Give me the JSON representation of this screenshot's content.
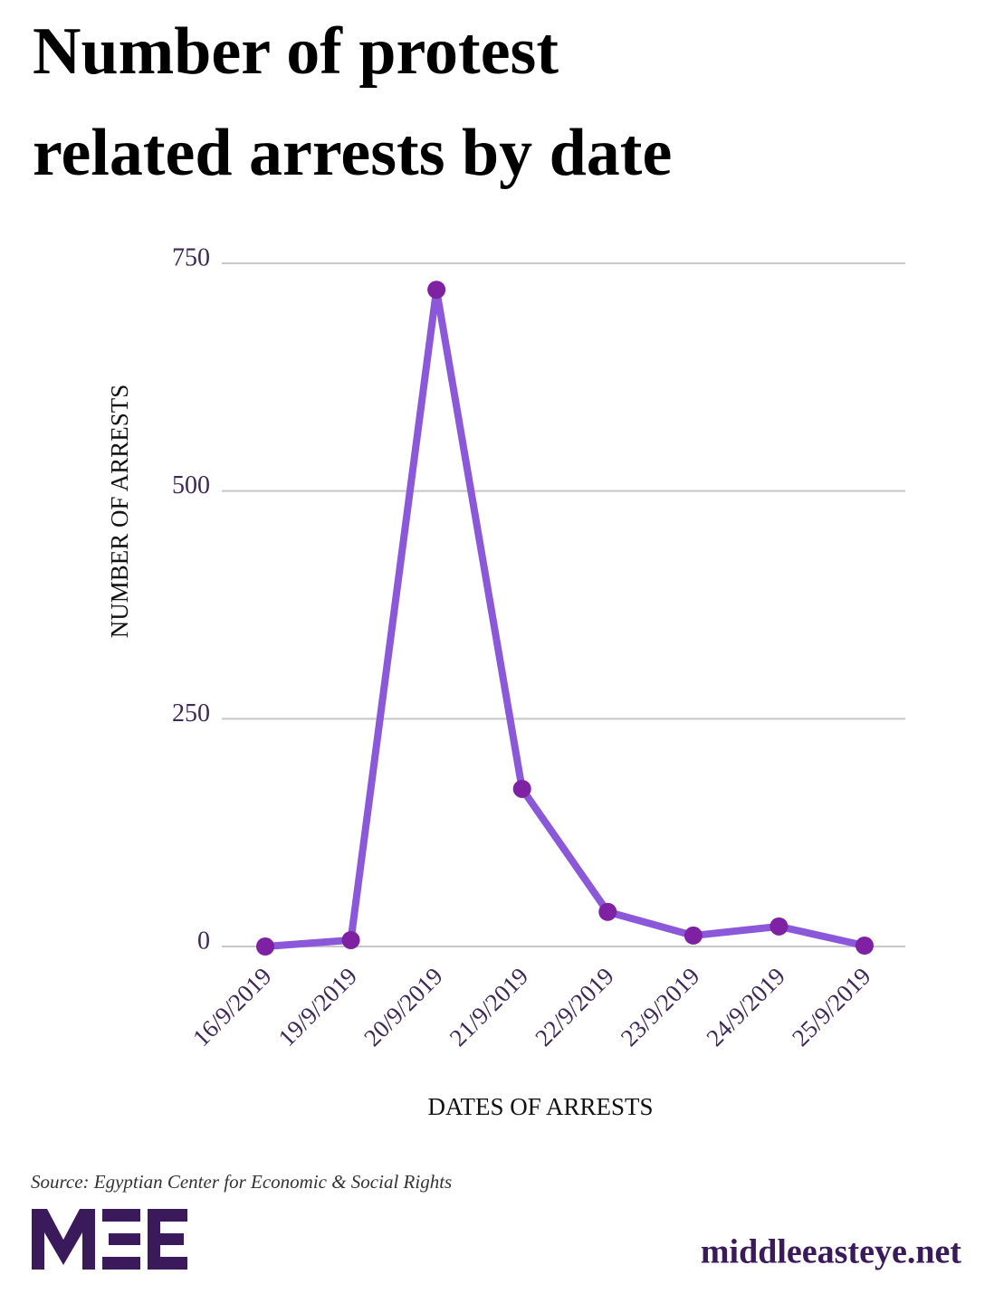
{
  "chart_data": {
    "type": "line",
    "title": [
      "Number of protest",
      "related arrests by date"
    ],
    "x_label": "DATES OF ARRESTS",
    "y_label": "NUMBER OF ARRESTS",
    "categories": [
      "16/9/2019",
      "19/9/2019",
      "20/9/2019",
      "21/9/2019",
      "22/9/2019",
      "23/9/2019",
      "24/9/2019",
      "25/9/2019"
    ],
    "values": [
      0,
      7,
      721,
      173,
      38,
      12,
      22,
      1
    ],
    "color": "#8a58d8",
    "marker_color": "#7e22a3",
    "ylim": [
      0,
      750
    ],
    "yticks": [
      0,
      250,
      500,
      750
    ],
    "grid": true
  },
  "source": "Source: Egyptian Center for Economic & Social Rights",
  "website": "middleeasteye.net"
}
